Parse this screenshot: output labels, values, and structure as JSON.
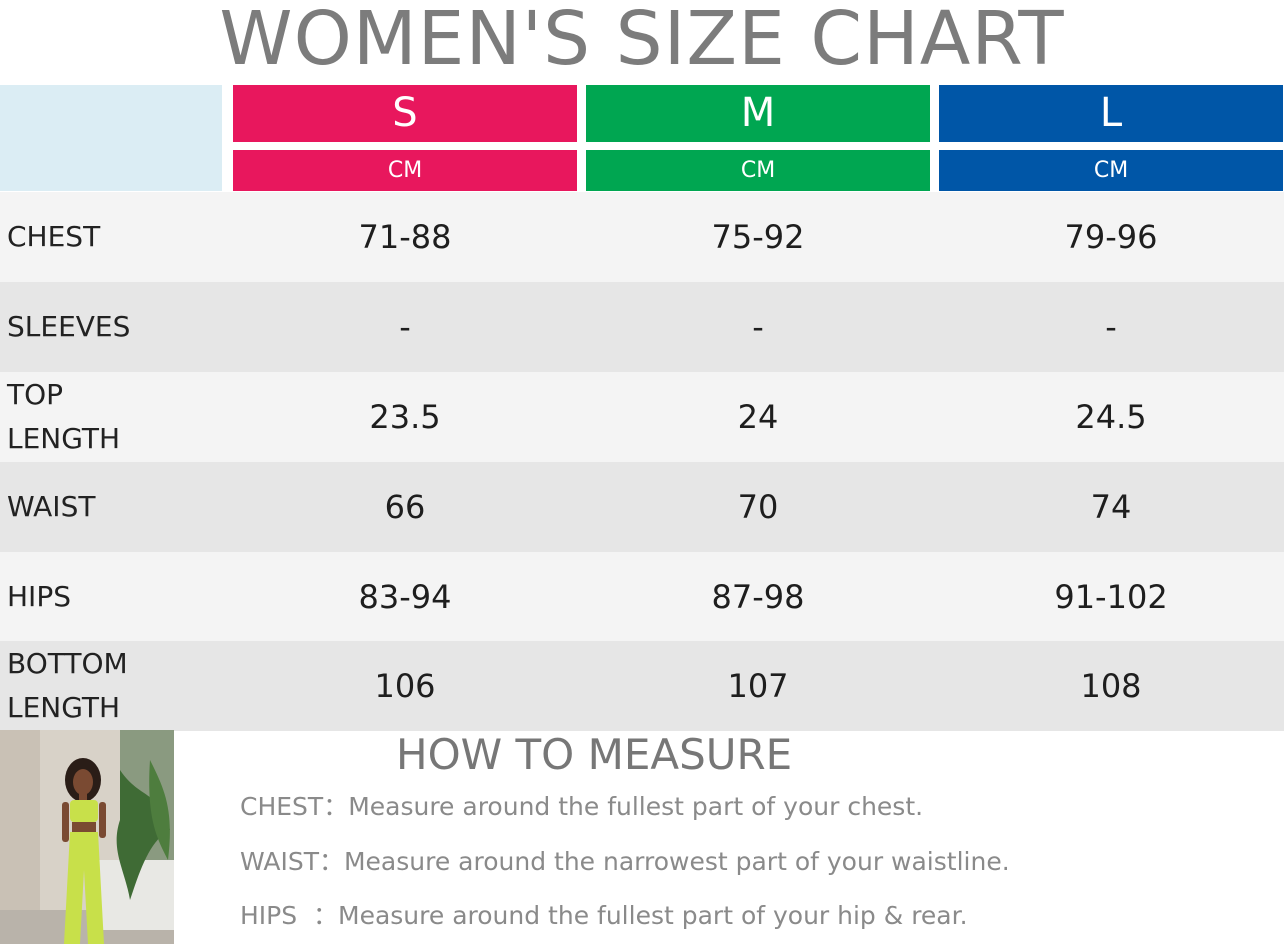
{
  "title": "WOMEN'S SIZE CHART",
  "colors": {
    "corner": "#dbedf4",
    "size_s": "#e8175d",
    "size_m": "#00a651",
    "size_l": "#0056a7",
    "row_light": "#f4f4f4",
    "row_dark": "#e6e6e6"
  },
  "sizes": [
    {
      "label": "S",
      "unit": "CM"
    },
    {
      "label": "M",
      "unit": "CM"
    },
    {
      "label": "L",
      "unit": "CM"
    }
  ],
  "rows": [
    {
      "label": "CHEST",
      "values": [
        "71-88",
        "75-92",
        "79-96"
      ]
    },
    {
      "label": "SLEEVES",
      "values": [
        "-",
        "-",
        "-"
      ]
    },
    {
      "label": "TOP\nLENGTH",
      "values": [
        "23.5",
        "24",
        "24.5"
      ]
    },
    {
      "label": "WAIST",
      "values": [
        "66",
        "70",
        "74"
      ]
    },
    {
      "label": "HIPS",
      "values": [
        "83-94",
        "87-98",
        "91-102"
      ]
    },
    {
      "label": "BOTTOM\nLENGTH",
      "values": [
        "106",
        "107",
        "108"
      ]
    }
  ],
  "how_to_measure": {
    "title": "HOW TO MEASURE",
    "items": [
      "CHEST：Measure around the fullest part of your chest.",
      "WAIST：Measure around the narrowest part of your waistline.",
      "HIPS  ：Measure around the fullest part of your hip & rear."
    ]
  },
  "photo": {
    "icon": "model-photo-icon"
  }
}
